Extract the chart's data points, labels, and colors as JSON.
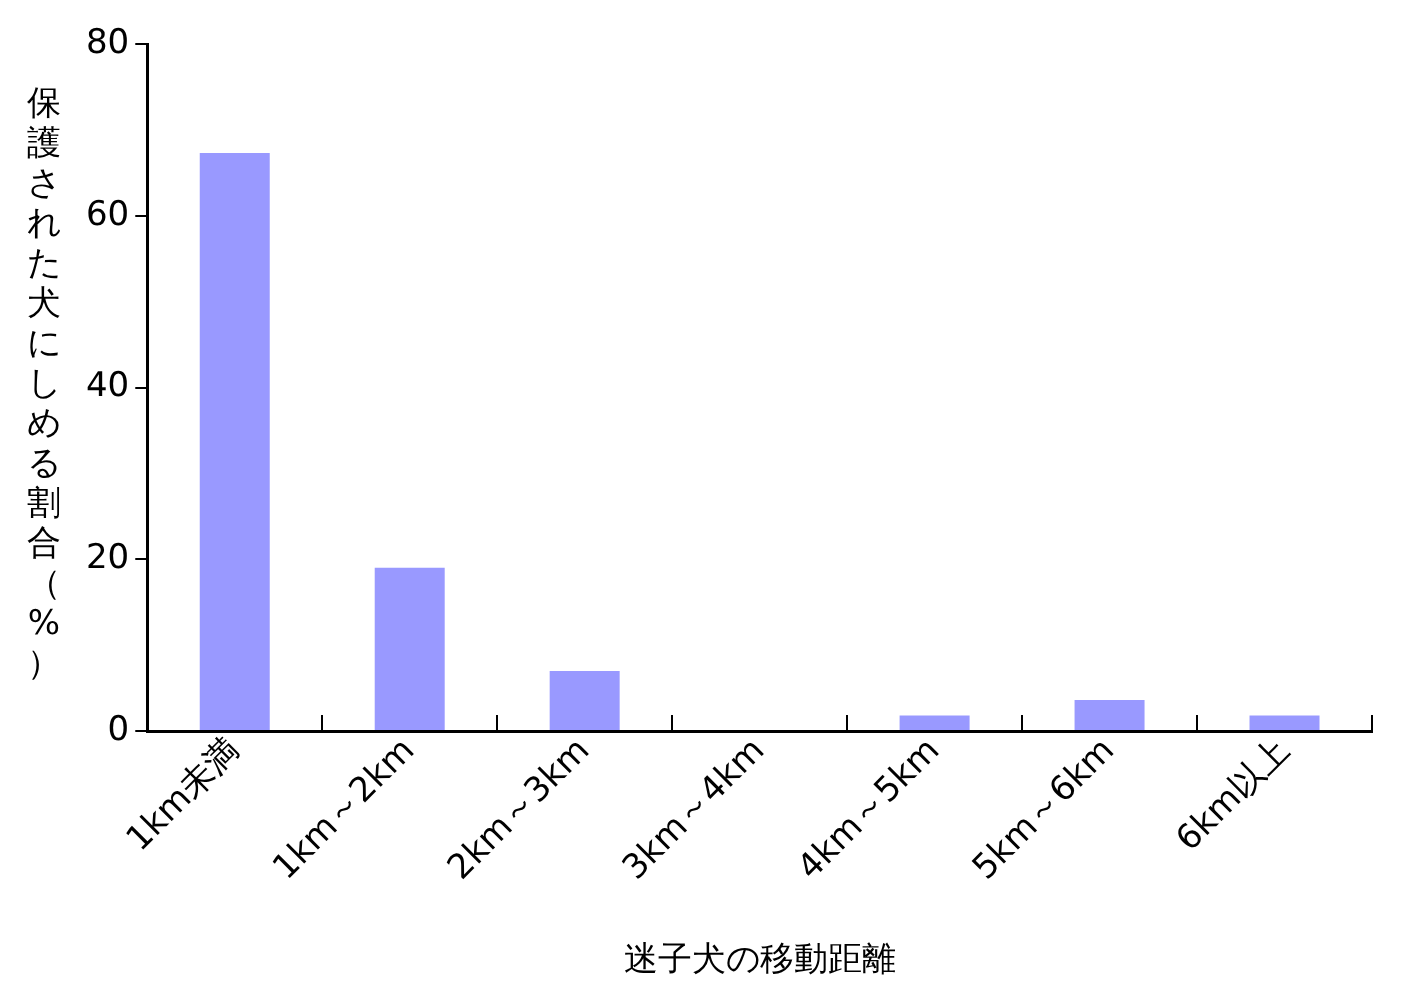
{
  "chart_data": {
    "type": "bar",
    "xlabel": "迷子犬の移動距離",
    "ylabel": "保護された犬にしめる割合（%）",
    "categories": [
      "1km未満",
      "1km～2km",
      "2km～3km",
      "3km～4km",
      "4km～5km",
      "5km～6km",
      "6km以上"
    ],
    "values": [
      67.3,
      19.0,
      7.0,
      0,
      1.8,
      3.6,
      1.8
    ],
    "color": "#9999ff",
    "ylim": [
      0,
      80
    ],
    "yticks": [
      0,
      20,
      40,
      60,
      80
    ],
    "grid": false,
    "legend": false
  }
}
